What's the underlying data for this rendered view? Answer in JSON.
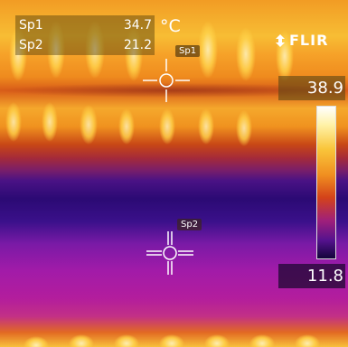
{
  "spots": [
    {
      "label": "Sp1",
      "value": "34.7",
      "tag": "Sp1"
    },
    {
      "label": "Sp2",
      "value": "21.2",
      "tag": "Sp2"
    }
  ],
  "unit": "°C",
  "logo_text": "FLIR",
  "scale": {
    "max": "38.9",
    "min": "11.8"
  },
  "colors": {
    "hot": "#f8c03b",
    "warm": "#ef8b1e",
    "cool": "#2b0a74",
    "mid": "#a21ba8"
  },
  "icons": [
    "flir-logo-icon",
    "crosshair-icon"
  ]
}
